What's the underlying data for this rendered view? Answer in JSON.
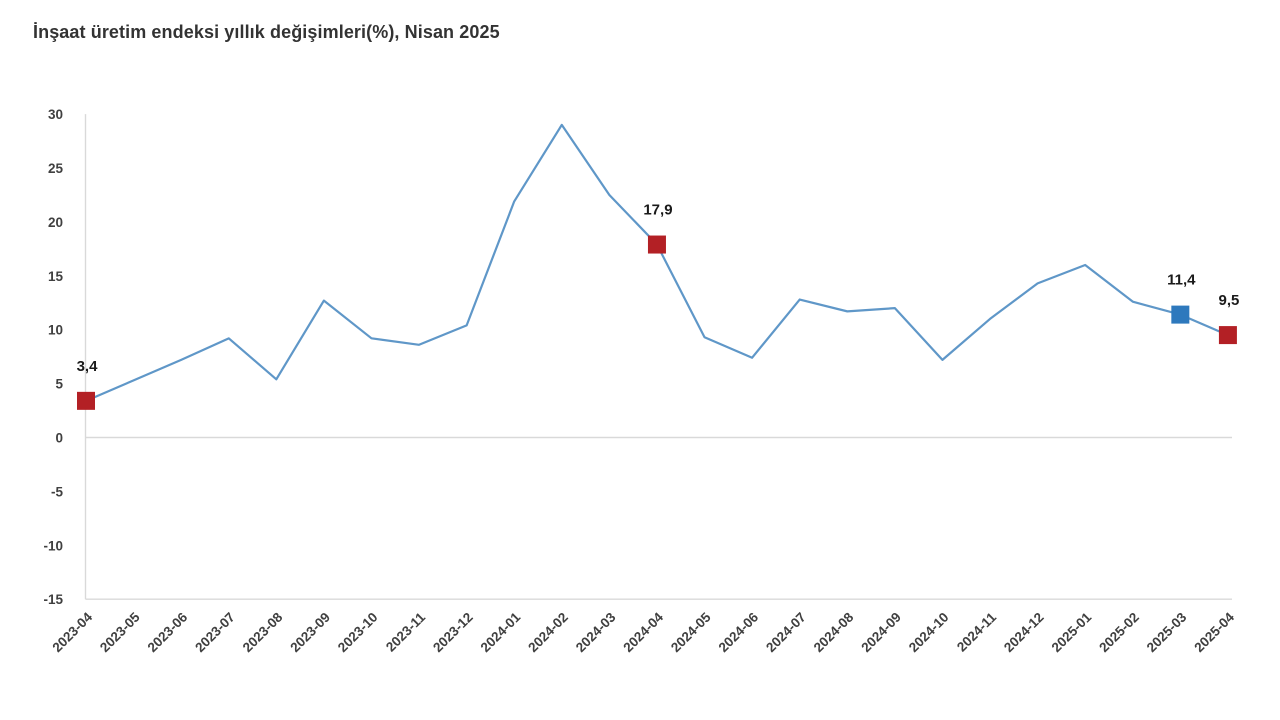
{
  "chart_data": {
    "type": "line",
    "title": "İnşaat üretim endeksi yıllık değişimleri(%), Nisan 2025",
    "xlabel": "",
    "ylabel": "",
    "ylim": [
      -15,
      30
    ],
    "yticks": [
      30,
      25,
      20,
      15,
      10,
      5,
      0,
      -5,
      -10,
      -15
    ],
    "grid": "zero line and bottom border only, light gray; left axis line",
    "legend_position": "none",
    "line_color": "#5f97c8",
    "axis_line_color": "#d9d9d9",
    "tick_label_color": "#404040",
    "value_label_color": "#1a1a1a",
    "categories": [
      "2023-04",
      "2023-05",
      "2023-06",
      "2023-07",
      "2023-08",
      "2023-09",
      "2023-10",
      "2023-11",
      "2023-12",
      "2024-01",
      "2024-02",
      "2024-03",
      "2024-04",
      "2024-05",
      "2024-06",
      "2024-07",
      "2024-08",
      "2024-09",
      "2024-10",
      "2024-11",
      "2024-12",
      "2025-01",
      "2025-02",
      "2025-03",
      "2025-04"
    ],
    "values": [
      3.4,
      5.3,
      7.2,
      9.2,
      5.4,
      12.7,
      9.2,
      8.6,
      10.4,
      21.9,
      29.0,
      22.5,
      17.9,
      9.3,
      7.4,
      12.8,
      11.7,
      12.0,
      7.2,
      11.0,
      14.3,
      16.0,
      12.6,
      11.4,
      9.5
    ],
    "annotations": [
      {
        "category": "2023-04",
        "value": 3.4,
        "label": "3,4",
        "marker": "square",
        "marker_color": "#b32025"
      },
      {
        "category": "2024-04",
        "value": 17.9,
        "label": "17,9",
        "marker": "square",
        "marker_color": "#b32025"
      },
      {
        "category": "2025-03",
        "value": 11.4,
        "label": "11,4",
        "marker": "square",
        "marker_color": "#2e79bd"
      },
      {
        "category": "2025-04",
        "value": 9.5,
        "label": "9,5",
        "marker": "square",
        "marker_color": "#b32025"
      }
    ]
  }
}
